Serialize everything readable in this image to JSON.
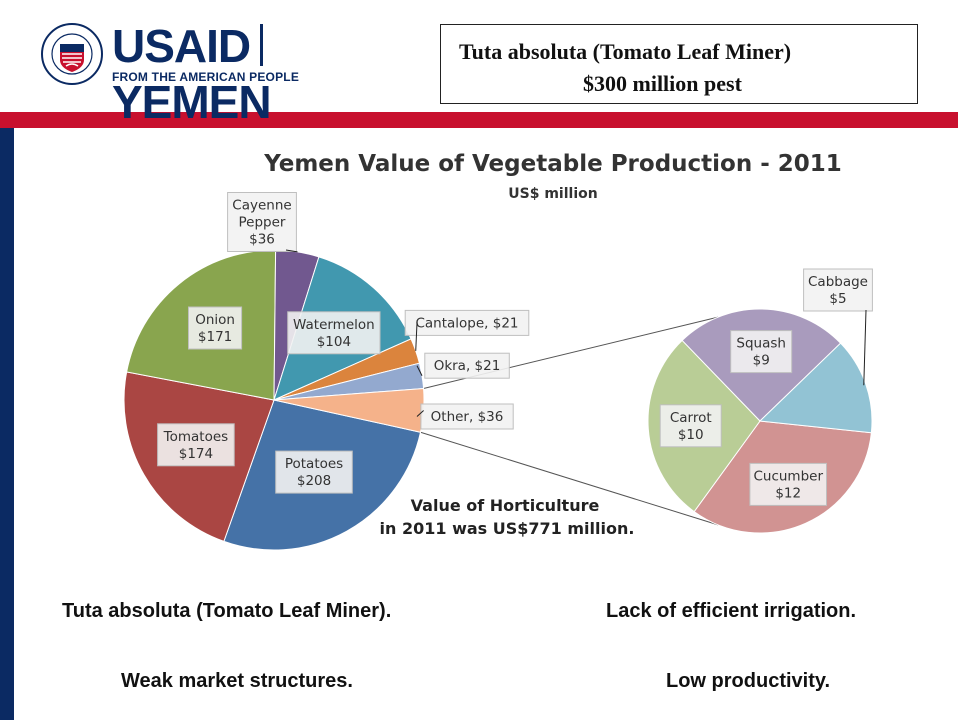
{
  "header": {
    "logo": {
      "seal_text": "UNITED STATES AGENCY FOR INTERNATIONAL DEVELOPMENT",
      "wordmark_primary": "USAID",
      "wordmark_country": "YEMEN",
      "tagline": "FROM THE AMERICAN PEOPLE"
    },
    "title_line1": "Tuta absoluta (Tomato Leaf Miner)",
    "title_line2": "$300 million pest"
  },
  "colors": {
    "red_rule": "#c8102e",
    "navy": "#0b2a63"
  },
  "chart_data": {
    "type": "pie",
    "title": "Yemen Value of Vegetable Production - 2011",
    "subtitle": "US$ million",
    "annotation_line1": "Value of Horticulture",
    "annotation_line2": "in 2011 was US$771 million.",
    "main_pie": {
      "slices": [
        {
          "name": "Potatoes",
          "value": 208,
          "label": "$208",
          "color": "#4572a7"
        },
        {
          "name": "Tomatoes",
          "value": 174,
          "label": "$174",
          "color": "#aa4643"
        },
        {
          "name": "Onion",
          "value": 171,
          "label": "$171",
          "color": "#89a54e"
        },
        {
          "name": "Cayenne Pepper",
          "value": 36,
          "label": "$36",
          "color": "#71588f"
        },
        {
          "name": "Watermelon",
          "value": 104,
          "label": "$104",
          "color": "#4198af"
        },
        {
          "name": "Cantalope",
          "value": 21,
          "label": "Cantalope, $21",
          "color": "#db843d"
        },
        {
          "name": "Okra",
          "value": 21,
          "label": "Okra, $21",
          "color": "#93a9cf"
        },
        {
          "name": "Other",
          "value": 36,
          "label": "Other, $36",
          "color": "#f5b28a"
        }
      ]
    },
    "breakout_pie": {
      "of": "Other",
      "slices": [
        {
          "name": "Cucumber",
          "value": 12,
          "label": "$12",
          "color": "#d19392"
        },
        {
          "name": "Carrot",
          "value": 10,
          "label": "$10",
          "color": "#b9cd96"
        },
        {
          "name": "Squash",
          "value": 9,
          "label": "$9",
          "color": "#a99bbd"
        },
        {
          "name": "Cabbage",
          "value": 5,
          "label": "$5",
          "color": "#92c3d4"
        }
      ]
    }
  },
  "bullets": {
    "left_top": "Tuta absoluta (Tomato Leaf Miner).",
    "right_top": "Lack of efficient irrigation.",
    "left_bottom": "Weak market structures.",
    "right_bottom": "Low productivity."
  }
}
